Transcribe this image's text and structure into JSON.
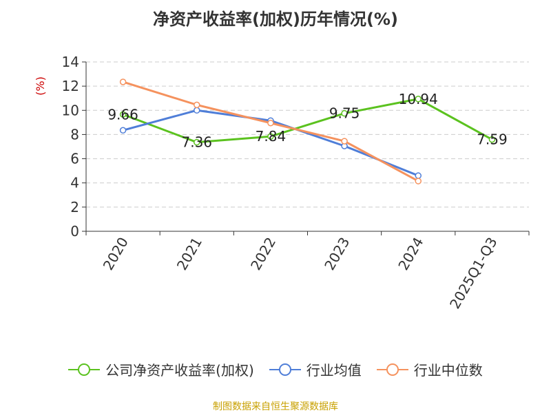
{
  "chart_data": {
    "type": "line",
    "title": "净资产收益率(加权)历年情况(%)",
    "ylabel": "(%)",
    "xlabel": "",
    "ylim": [
      0,
      14
    ],
    "yticks": [
      0,
      2,
      4,
      6,
      8,
      10,
      12,
      14
    ],
    "grid": true,
    "legend_position": "bottom",
    "categories": [
      "2020",
      "2021",
      "2022",
      "2023",
      "2024",
      "2025Q1-Q3"
    ],
    "series": [
      {
        "name": "公司净资产收益率(加权)",
        "color": "#5bc21f",
        "values": [
          9.66,
          7.36,
          7.84,
          9.75,
          10.94,
          7.59
        ],
        "labels": [
          "9.66",
          "7.36",
          "7.84",
          "9.75",
          "10.94",
          "7.59"
        ]
      },
      {
        "name": "行业均值",
        "color": "#4f7ed8",
        "values": [
          8.35,
          10.0,
          9.15,
          7.05,
          4.6,
          null
        ]
      },
      {
        "name": "行业中位数",
        "color": "#f5925e",
        "values": [
          12.35,
          10.45,
          8.95,
          7.45,
          4.15,
          null
        ]
      }
    ]
  },
  "footer": {
    "source": "制图数据来自恒生聚源数据库"
  }
}
